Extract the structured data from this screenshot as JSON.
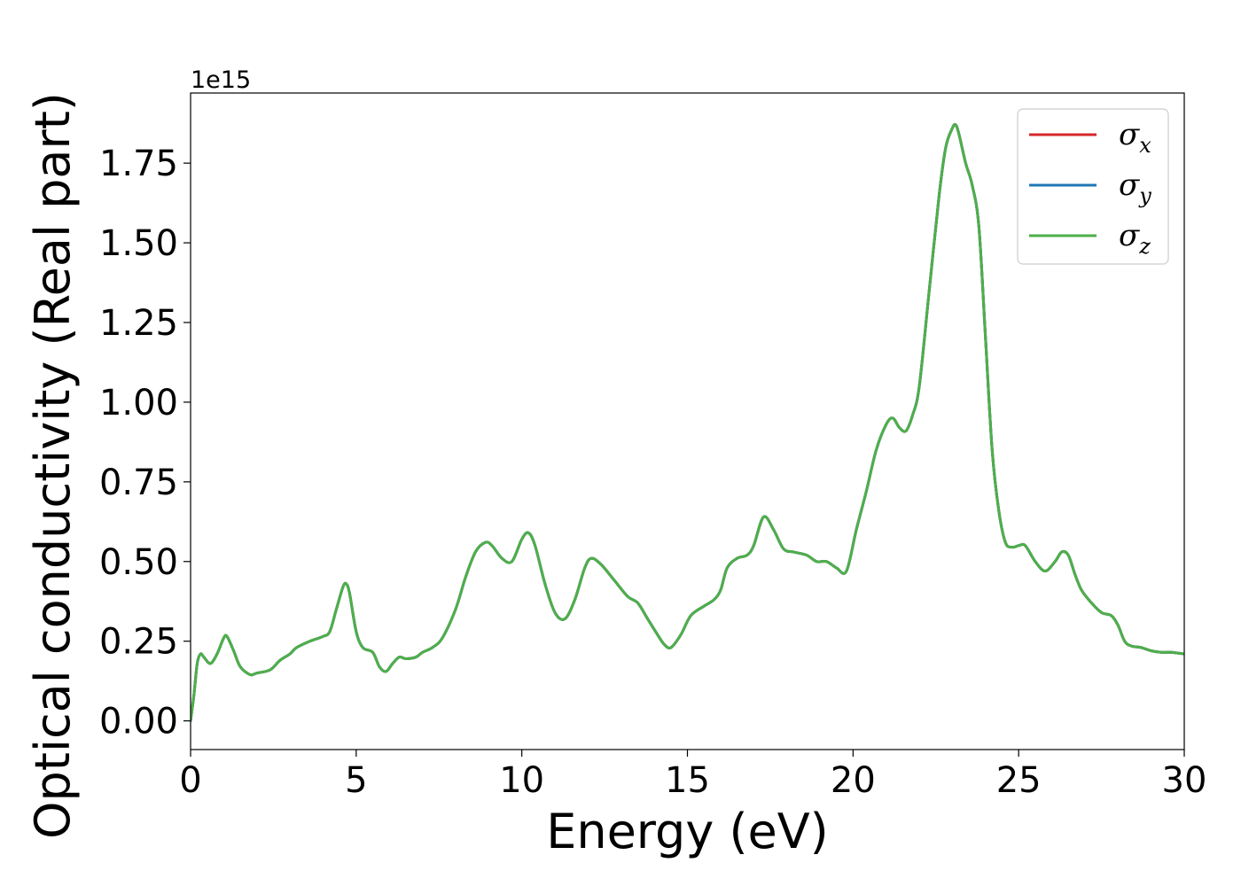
{
  "chart_data": {
    "type": "line",
    "title": "",
    "xlabel": "Energy (eV)",
    "ylabel": "Optical conductivity (Real part)",
    "y_offset_text": "1e15",
    "y_scale": 1000000000000000.0,
    "xlim": [
      0,
      30
    ],
    "ylim": [
      -0.09,
      1.97
    ],
    "x_ticks": [
      0,
      5,
      10,
      15,
      20,
      25,
      30
    ],
    "x_tick_labels": [
      "0",
      "5",
      "10",
      "15",
      "20",
      "25",
      "30"
    ],
    "y_ticks": [
      0.0,
      0.25,
      0.5,
      0.75,
      1.0,
      1.25,
      1.5,
      1.75
    ],
    "y_tick_labels": [
      "0.00",
      "0.25",
      "0.50",
      "0.75",
      "1.00",
      "1.25",
      "1.50",
      "1.75"
    ],
    "grid": false,
    "legend_position": "top-right",
    "x": [
      0,
      0.1,
      0.2,
      0.3,
      0.4,
      0.6,
      0.8,
      1.0,
      1.1,
      1.3,
      1.5,
      1.8,
      2.0,
      2.4,
      2.7,
      3.0,
      3.2,
      3.6,
      4.0,
      4.2,
      4.4,
      4.6,
      4.7,
      4.8,
      5.0,
      5.2,
      5.5,
      5.7,
      5.9,
      6.1,
      6.3,
      6.5,
      6.8,
      7.0,
      7.3,
      7.6,
      8.0,
      8.3,
      8.6,
      8.9,
      9.1,
      9.4,
      9.7,
      10.0,
      10.2,
      10.4,
      10.7,
      11.0,
      11.3,
      11.6,
      11.9,
      12.1,
      12.4,
      12.8,
      13.2,
      13.5,
      13.8,
      14.1,
      14.3,
      14.5,
      14.8,
      15.1,
      15.5,
      15.8,
      16.0,
      16.2,
      16.5,
      16.8,
      17.0,
      17.3,
      17.6,
      17.9,
      18.2,
      18.6,
      18.9,
      19.2,
      19.5,
      19.8,
      20.1,
      20.4,
      20.7,
      21.0,
      21.2,
      21.4,
      21.6,
      21.8,
      22.0,
      22.3,
      22.6,
      22.8,
      23.0,
      23.1,
      23.2,
      23.4,
      23.6,
      23.8,
      24.0,
      24.2,
      24.4,
      24.6,
      24.8,
      25.0,
      25.2,
      25.5,
      25.8,
      26.1,
      26.3,
      26.5,
      26.7,
      26.9,
      27.2,
      27.5,
      27.8,
      28.0,
      28.2,
      28.4,
      28.7,
      29.0,
      29.3,
      29.6,
      30.0
    ],
    "series": [
      {
        "name": "σx",
        "color": "#d62728",
        "values": [
          0.0,
          0.08,
          0.18,
          0.21,
          0.2,
          0.18,
          0.21,
          0.26,
          0.265,
          0.22,
          0.17,
          0.145,
          0.15,
          0.16,
          0.19,
          0.21,
          0.23,
          0.25,
          0.265,
          0.28,
          0.35,
          0.42,
          0.43,
          0.4,
          0.28,
          0.23,
          0.215,
          0.17,
          0.155,
          0.18,
          0.2,
          0.195,
          0.2,
          0.215,
          0.23,
          0.26,
          0.35,
          0.45,
          0.53,
          0.56,
          0.55,
          0.51,
          0.5,
          0.57,
          0.59,
          0.55,
          0.43,
          0.34,
          0.32,
          0.38,
          0.48,
          0.51,
          0.49,
          0.44,
          0.39,
          0.37,
          0.32,
          0.27,
          0.24,
          0.23,
          0.27,
          0.33,
          0.36,
          0.38,
          0.41,
          0.48,
          0.51,
          0.52,
          0.55,
          0.64,
          0.6,
          0.54,
          0.53,
          0.52,
          0.5,
          0.5,
          0.48,
          0.47,
          0.6,
          0.72,
          0.85,
          0.93,
          0.95,
          0.92,
          0.91,
          0.96,
          1.05,
          1.35,
          1.65,
          1.8,
          1.86,
          1.87,
          1.84,
          1.75,
          1.68,
          1.55,
          1.2,
          0.85,
          0.66,
          0.56,
          0.545,
          0.55,
          0.55,
          0.5,
          0.47,
          0.5,
          0.53,
          0.52,
          0.46,
          0.41,
          0.37,
          0.34,
          0.33,
          0.3,
          0.25,
          0.235,
          0.23,
          0.22,
          0.215,
          0.215,
          0.21
        ]
      },
      {
        "name": "σy",
        "color": "#1f77b4",
        "values": [
          0.0,
          0.08,
          0.18,
          0.21,
          0.2,
          0.18,
          0.21,
          0.26,
          0.265,
          0.22,
          0.17,
          0.145,
          0.15,
          0.16,
          0.19,
          0.21,
          0.23,
          0.25,
          0.265,
          0.28,
          0.35,
          0.42,
          0.43,
          0.4,
          0.28,
          0.23,
          0.215,
          0.17,
          0.155,
          0.18,
          0.2,
          0.195,
          0.2,
          0.215,
          0.23,
          0.26,
          0.35,
          0.45,
          0.53,
          0.56,
          0.55,
          0.51,
          0.5,
          0.57,
          0.59,
          0.55,
          0.43,
          0.34,
          0.32,
          0.38,
          0.48,
          0.51,
          0.49,
          0.44,
          0.39,
          0.37,
          0.32,
          0.27,
          0.24,
          0.23,
          0.27,
          0.33,
          0.36,
          0.38,
          0.41,
          0.48,
          0.51,
          0.52,
          0.55,
          0.64,
          0.6,
          0.54,
          0.53,
          0.52,
          0.5,
          0.5,
          0.48,
          0.47,
          0.6,
          0.72,
          0.85,
          0.93,
          0.95,
          0.92,
          0.91,
          0.96,
          1.05,
          1.35,
          1.65,
          1.8,
          1.86,
          1.87,
          1.84,
          1.75,
          1.68,
          1.55,
          1.2,
          0.85,
          0.66,
          0.56,
          0.545,
          0.55,
          0.55,
          0.5,
          0.47,
          0.5,
          0.53,
          0.52,
          0.46,
          0.41,
          0.37,
          0.34,
          0.33,
          0.3,
          0.25,
          0.235,
          0.23,
          0.22,
          0.215,
          0.215,
          0.21
        ]
      },
      {
        "name": "σz",
        "color": "#4daf4a",
        "values": [
          0.0,
          0.08,
          0.18,
          0.21,
          0.2,
          0.18,
          0.21,
          0.26,
          0.265,
          0.22,
          0.17,
          0.145,
          0.15,
          0.16,
          0.19,
          0.21,
          0.23,
          0.25,
          0.265,
          0.28,
          0.35,
          0.42,
          0.43,
          0.4,
          0.28,
          0.23,
          0.215,
          0.17,
          0.155,
          0.18,
          0.2,
          0.195,
          0.2,
          0.215,
          0.23,
          0.26,
          0.35,
          0.45,
          0.53,
          0.56,
          0.55,
          0.51,
          0.5,
          0.57,
          0.59,
          0.55,
          0.43,
          0.34,
          0.32,
          0.38,
          0.48,
          0.51,
          0.49,
          0.44,
          0.39,
          0.37,
          0.32,
          0.27,
          0.24,
          0.23,
          0.27,
          0.33,
          0.36,
          0.38,
          0.41,
          0.48,
          0.51,
          0.52,
          0.55,
          0.64,
          0.6,
          0.54,
          0.53,
          0.52,
          0.5,
          0.5,
          0.48,
          0.47,
          0.6,
          0.72,
          0.85,
          0.93,
          0.95,
          0.92,
          0.91,
          0.96,
          1.05,
          1.35,
          1.65,
          1.8,
          1.86,
          1.87,
          1.84,
          1.75,
          1.68,
          1.55,
          1.2,
          0.85,
          0.66,
          0.56,
          0.545,
          0.55,
          0.55,
          0.5,
          0.47,
          0.5,
          0.53,
          0.52,
          0.46,
          0.41,
          0.37,
          0.34,
          0.33,
          0.3,
          0.25,
          0.235,
          0.23,
          0.22,
          0.215,
          0.215,
          0.21
        ]
      }
    ],
    "legend": [
      {
        "symbol": "σ",
        "subscript": "x",
        "color": "#d62728"
      },
      {
        "symbol": "σ",
        "subscript": "y",
        "color": "#1f77b4"
      },
      {
        "symbol": "σ",
        "subscript": "z",
        "color": "#4daf4a"
      }
    ]
  }
}
